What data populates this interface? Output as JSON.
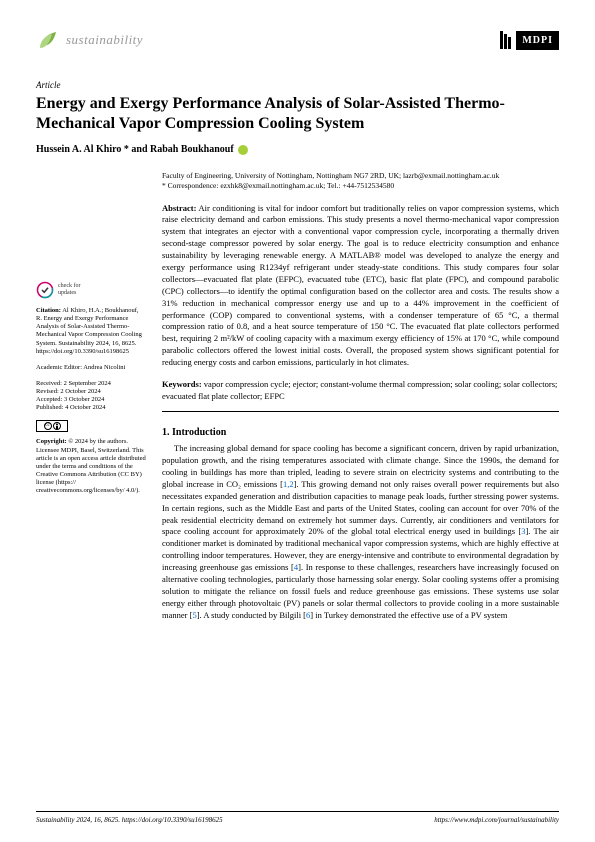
{
  "journal": "sustainability",
  "publisher": "MDPI",
  "article_type": "Article",
  "title": "Energy and Exergy Performance Analysis of Solar-Assisted Thermo-Mechanical Vapor Compression Cooling System",
  "authors": "Hussein A. Al Khiro * and Rabah Boukhanouf",
  "affiliation": "Faculty of Engineering, University of Nottingham, Nottingham NG7 2RD, UK; lazrb@exmail.nottingham.ac.uk",
  "correspondence": "* Correspondence: ezxhk8@exmail.nottingham.ac.uk; Tel.: +44-7512534580",
  "abstract_label": "Abstract:",
  "abstract": " Air conditioning is vital for indoor comfort but traditionally relies on vapor compression systems, which raise electricity demand and carbon emissions. This study presents a novel thermo-mechanical vapor compression system that integrates an ejector with a conventional vapor compression cycle, incorporating a thermally driven second-stage compressor powered by solar energy. The goal is to reduce electricity consumption and enhance sustainability by leveraging renewable energy. A MATLAB® model was developed to analyze the energy and exergy performance using R1234yf refrigerant under steady-state conditions. This study compares four solar collectors—evacuated flat plate (EFPC), evacuated tube (ETC), basic flat plate (FPC), and compound parabolic (CPC) collectors—to identify the optimal configuration based on the collector area and costs. The results show a 31% reduction in mechanical compressor energy use and up to a 44% improvement in the coefficient of performance (COP) compared to conventional systems, with a condenser temperature of 65 °C, a thermal compression ratio of 0.8, and a heat source temperature of 150 °C. The evacuated flat plate collectors performed best, requiring 2 m²/kW of cooling capacity with a maximum exergy efficiency of 15% at 170 °C, while compound parabolic collectors offered the lowest initial costs. Overall, the proposed system shows significant potential for reducing energy costs and carbon emissions, particularly in hot climates.",
  "keywords_label": "Keywords:",
  "keywords": " vapor compression cycle; ejector; constant-volume thermal compression; solar cooling; solar collectors; evacuated flat plate collector; EFPC",
  "section1_title": "1. Introduction",
  "intro_text": "The increasing global demand for space cooling has become a significant concern, driven by rapid urbanization, population growth, and the rising temperatures associated with climate change. Since the 1990s, the demand for cooling in buildings has more than tripled, leading to severe strain on electricity systems and contributing to the global increase in CO₂ emissions [1,2]. This growing demand not only raises overall power requirements but also necessitates expanded generation and distribution capacities to manage peak loads, further stressing power systems. In certain regions, such as the Middle East and parts of the United States, cooling can account for over 70% of the peak residential electricity demand on extremely hot summer days. Currently, air conditioners and ventilators for space cooling account for approximately 20% of the global total electrical energy used in buildings [3]. The air conditioner market is dominated by traditional mechanical vapor compression systems, which are highly effective at controlling indoor temperatures. However, they are energy-intensive and contribute to environmental degradation by increasing greenhouse gas emissions [4]. In response to these challenges, researchers have increasingly focused on alternative cooling technologies, particularly those harnessing solar energy. Solar cooling systems offer a promising solution to mitigate the reliance on fossil fuels and reduce greenhouse gas emissions. These systems use solar energy either through photovoltaic (PV) panels or solar thermal collectors to provide cooling in a more sustainable manner [5]. A study conducted by Bilgili [6] in Turkey demonstrated the effective use of a PV system",
  "check_updates": "check for updates",
  "citation_label": "Citation:",
  "citation": " Al Khiro, H.A.; Boukhanouf, R. Energy and Exergy Performance Analysis of Solar-Assisted Thermo-Mechanical Vapor Compression Cooling System. Sustainability 2024, 16, 8625. https://doi.org/10.3390/su16198625",
  "academic_editor": "Academic Editor: Andrea Nicolini",
  "received": "Received: 2 September 2024",
  "revised": "Revised: 2 October 2024",
  "accepted": "Accepted: 3 October 2024",
  "published": "Published: 4 October 2024",
  "copyright_label": "Copyright:",
  "copyright": " © 2024 by the authors. Licensee MDPI, Basel, Switzerland. This article is an open access article distributed under the terms and conditions of the Creative Commons Attribution (CC BY) license (https:// creativecommons.org/licenses/by/ 4.0/).",
  "footer_left": "Sustainability 2024, 16, 8625. https://doi.org/10.3390/su16198625",
  "footer_right": "https://www.mdpi.com/journal/sustainability"
}
